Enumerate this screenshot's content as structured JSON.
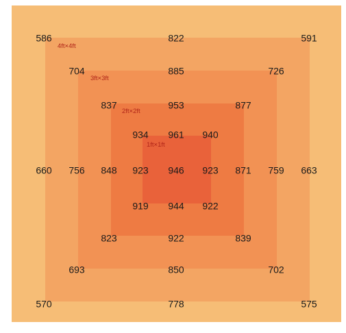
{
  "diagram": {
    "zones": [
      {
        "label": "",
        "color": "#f6bd76"
      },
      {
        "label": "4ft×4ft",
        "color": "#f3a563"
      },
      {
        "label": "3ft×3ft",
        "color": "#f29254"
      },
      {
        "label": "2ft×2ft",
        "color": "#ee7b43"
      },
      {
        "label": "1ft×1ft",
        "color": "#e9623a"
      }
    ],
    "grid": [
      [
        "586",
        "",
        "",
        "",
        "822",
        "",
        "",
        "",
        "591"
      ],
      [
        "",
        "704",
        "",
        "",
        "885",
        "",
        "",
        "726",
        ""
      ],
      [
        "",
        "",
        "837",
        "",
        "953",
        "",
        "877",
        "",
        ""
      ],
      [
        "",
        "",
        "",
        "934",
        "961",
        "940",
        "",
        "",
        ""
      ],
      [
        "660",
        "756",
        "848",
        "923",
        "946",
        "923",
        "871",
        "759",
        "663"
      ],
      [
        "",
        "",
        "",
        "919",
        "944",
        "922",
        "",
        "",
        ""
      ],
      [
        "",
        "",
        "823",
        "",
        "922",
        "",
        "839",
        "",
        ""
      ],
      [
        "",
        "693",
        "",
        "",
        "850",
        "",
        "",
        "702",
        ""
      ],
      [
        "570",
        "",
        "",
        "",
        "778",
        "",
        "",
        "",
        "575"
      ]
    ]
  }
}
